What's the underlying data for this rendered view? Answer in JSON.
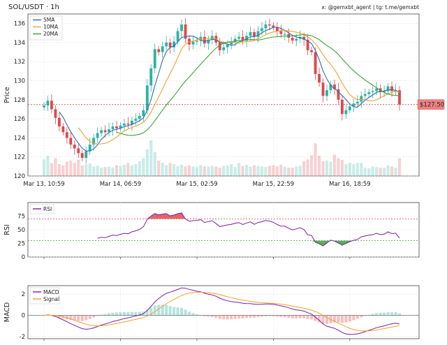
{
  "title": "SOL/USDT · 1h",
  "credit": "x: @gemxbt_agent | tg: t.me/gemxbt",
  "colors": {
    "up": "#2bb3a3",
    "down": "#e0474c",
    "sma5": "#2f6db5",
    "sma10": "#f0a030",
    "sma20": "#3aa335",
    "rsi": "#7a1fa2",
    "macd": "#7a1fa2",
    "signal": "#f0a030",
    "price_label_bg": "#f08080"
  },
  "chart_data": [
    {
      "type": "candlestick",
      "ylabel": "Price",
      "ylim": [
        120,
        137
      ],
      "yticks": [
        120,
        122,
        124,
        126,
        128,
        130,
        132,
        134,
        136
      ],
      "xtick_labels": [
        "Mar 13, 10:59",
        "Mar 14, 06:59",
        "Mar 15, 02:59",
        "Mar 15, 22:59",
        "Mar 16, 18:59"
      ],
      "xtick_index": [
        0,
        20,
        40,
        60,
        80
      ],
      "grid": true,
      "legend_position": "top-left",
      "legend": [
        "5MA",
        "10MA",
        "20MA"
      ],
      "current_price": 127.5,
      "current_price_label": "$127.50",
      "close": [
        127.4,
        127.9,
        127.0,
        126.1,
        125.2,
        124.6,
        124.0,
        123.3,
        122.9,
        122.4,
        121.9,
        122.6,
        123.3,
        124.0,
        124.5,
        124.8,
        124.6,
        124.9,
        125.2,
        125.0,
        125.3,
        125.5,
        125.4,
        125.8,
        126.0,
        126.3,
        126.9,
        129.5,
        131.3,
        133.3,
        133.0,
        133.6,
        134.0,
        133.5,
        134.1,
        135.2,
        135.9,
        134.4,
        133.8,
        134.1,
        134.2,
        134.6,
        133.9,
        134.3,
        134.7,
        134.0,
        133.2,
        133.5,
        133.8,
        134.0,
        134.4,
        134.6,
        134.2,
        134.7,
        135.1,
        134.6,
        135.2,
        135.5,
        135.9,
        135.8,
        135.6,
        135.2,
        134.9,
        134.9,
        134.5,
        134.2,
        134.4,
        134.6,
        134.3,
        133.2,
        133.0,
        130.7,
        129.8,
        128.4,
        129.0,
        129.6,
        129.1,
        128.0,
        126.5,
        126.9,
        127.3,
        127.6,
        127.8,
        128.4,
        128.6,
        128.8,
        128.9,
        129.2,
        128.8,
        128.9,
        129.4,
        128.9,
        129.0,
        127.5
      ],
      "volume": [
        28,
        34,
        22,
        30,
        20,
        18,
        24,
        26,
        22,
        27,
        18,
        20,
        21,
        16,
        17,
        14,
        15,
        16,
        14,
        18,
        17,
        19,
        22,
        18,
        20,
        25,
        30,
        45,
        60,
        40,
        26,
        22,
        18,
        22,
        20,
        17,
        19,
        16,
        18,
        16,
        15,
        18,
        16,
        16,
        17,
        16,
        14,
        17,
        18,
        20,
        15,
        22,
        17,
        19,
        16,
        18,
        17,
        16,
        15,
        17,
        18,
        16,
        19,
        16,
        14,
        14,
        16,
        17,
        25,
        28,
        35,
        55,
        34,
        25,
        26,
        24,
        36,
        30,
        27,
        20,
        22,
        20,
        22,
        22,
        14,
        13,
        16,
        15,
        14,
        14,
        18,
        16,
        14,
        30
      ],
      "rsi": {
        "ylabel": "RSI",
        "ylim": [
          0,
          100
        ],
        "yticks": [
          0,
          25,
          50,
          75
        ],
        "overbought": 70,
        "oversold": 30,
        "legend": [
          "RSI"
        ]
      },
      "macd": {
        "ylabel": "MACD",
        "ylim": [
          -2.2,
          2.8
        ],
        "yticks": [
          -2,
          0,
          2
        ],
        "legend": [
          "MACD",
          "Signal"
        ]
      }
    }
  ]
}
